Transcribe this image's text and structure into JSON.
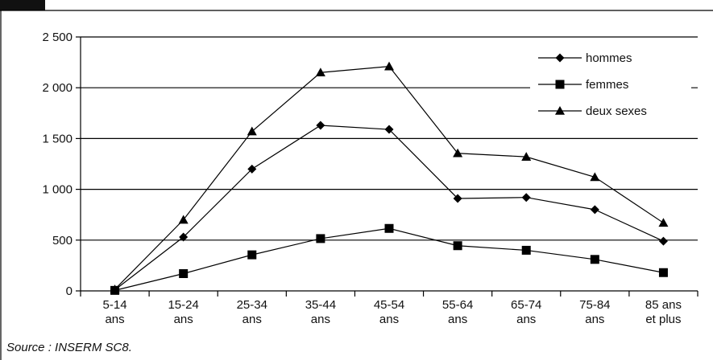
{
  "chart_data": {
    "type": "line",
    "categories": [
      [
        "5-14",
        "ans"
      ],
      [
        "15-24",
        "ans"
      ],
      [
        "25-34",
        "ans"
      ],
      [
        "35-44",
        "ans"
      ],
      [
        "45-54",
        "ans"
      ],
      [
        "55-64",
        "ans"
      ],
      [
        "65-74",
        "ans"
      ],
      [
        "75-84",
        "ans"
      ],
      [
        "85 ans",
        "et plus"
      ]
    ],
    "series": [
      {
        "name": "hommes",
        "marker": "diamond",
        "values": [
          10,
          530,
          1200,
          1630,
          1590,
          910,
          920,
          800,
          490
        ]
      },
      {
        "name": "femmes",
        "marker": "square",
        "values": [
          5,
          170,
          355,
          515,
          615,
          445,
          400,
          310,
          180
        ]
      },
      {
        "name": "deux sexes",
        "marker": "triangle",
        "values": [
          15,
          700,
          1570,
          2150,
          2210,
          1355,
          1320,
          1120,
          670
        ]
      }
    ],
    "ylim": [
      0,
      2500
    ],
    "yticks": [
      0,
      500,
      1000,
      1500,
      2000,
      2500
    ],
    "ytick_labels": [
      "0",
      "500",
      "1 000",
      "1 500",
      "2 000",
      "2 500"
    ],
    "grid": "horizontal",
    "legend": "top-right",
    "line_color": "#000000"
  },
  "source": "Source : INSERM SC8."
}
